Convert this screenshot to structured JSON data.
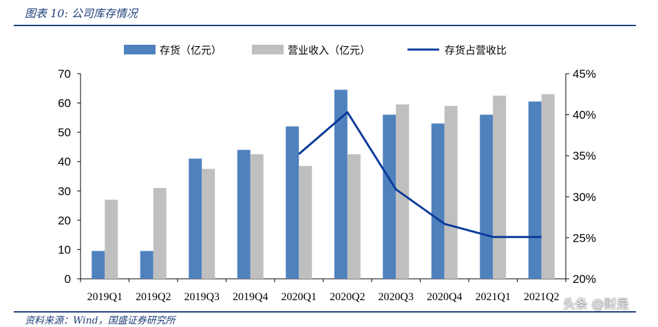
{
  "figure": {
    "title": "图表 10:  公司库存情况",
    "source": "资料来源：Wind，国盛证券研究所",
    "watermark": "头条 @财是"
  },
  "colors": {
    "inventory": "#4f81bd",
    "revenue": "#bfbfbf",
    "ratio": "#0a3a9a",
    "rule": "#1f3f7a"
  },
  "chart_data": {
    "type": "bar",
    "categories": [
      "2019Q1",
      "2019Q2",
      "2019Q3",
      "2019Q4",
      "2020Q1",
      "2020Q2",
      "2020Q3",
      "2020Q4",
      "2021Q1",
      "2021Q2"
    ],
    "series": [
      {
        "name": "存货（亿元）",
        "type": "bar",
        "axis": "left",
        "values": [
          9.5,
          9.5,
          41,
          44,
          52,
          64.5,
          56,
          53,
          56,
          60.5
        ]
      },
      {
        "name": "营业收入（亿元）",
        "type": "bar",
        "axis": "left",
        "values": [
          27,
          31,
          37.5,
          42.5,
          38.5,
          42.5,
          59.5,
          59,
          62.5,
          63
        ]
      },
      {
        "name": "存货占营收比",
        "type": "line",
        "axis": "right",
        "values": [
          null,
          null,
          null,
          null,
          35.2,
          40.3,
          30.9,
          26.7,
          25.1,
          25.1
        ]
      }
    ],
    "y_left": {
      "ylim": [
        0,
        70
      ],
      "ticks": [
        "0",
        "10",
        "20",
        "30",
        "40",
        "50",
        "60",
        "70"
      ]
    },
    "y_right": {
      "ylim": [
        20,
        45
      ],
      "ticks": [
        "20%",
        "25%",
        "30%",
        "35%",
        "40%",
        "45%"
      ]
    },
    "legend_position": "top",
    "grid": false
  }
}
